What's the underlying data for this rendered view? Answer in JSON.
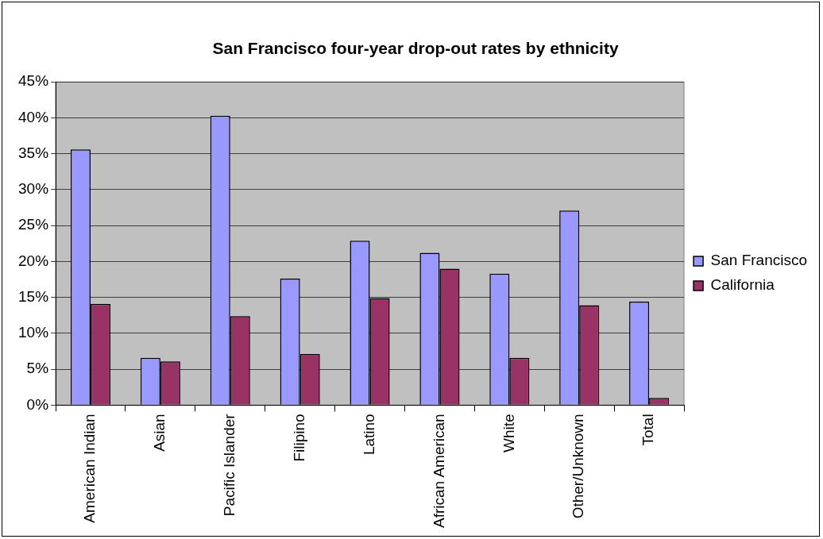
{
  "chart_data": {
    "type": "bar",
    "title": "San Francisco four-year drop-out rates by ethnicity",
    "categories": [
      "American Indian",
      "Asian",
      "Pacific Islander",
      "Filipino",
      "Latino",
      "African American",
      "White",
      "Other/Unknown",
      "Total"
    ],
    "series": [
      {
        "name": "San Francisco",
        "color": "#9999ff",
        "values": [
          35.6,
          6.6,
          40.3,
          17.6,
          22.9,
          21.2,
          18.3,
          27.1,
          14.4
        ]
      },
      {
        "name": "California",
        "color": "#993366",
        "values": [
          14.1,
          6.1,
          12.4,
          7.1,
          14.9,
          19.0,
          6.6,
          13.9,
          1.0
        ]
      }
    ],
    "ylim": [
      0,
      45
    ],
    "yticks": [
      {
        "value": 0,
        "label": "0%"
      },
      {
        "value": 5,
        "label": "5%"
      },
      {
        "value": 10,
        "label": "10%"
      },
      {
        "value": 15,
        "label": "15%"
      },
      {
        "value": 20,
        "label": "20%"
      },
      {
        "value": 25,
        "label": "25%"
      },
      {
        "value": 30,
        "label": "30%"
      },
      {
        "value": 35,
        "label": "35%"
      },
      {
        "value": 40,
        "label": "40%"
      },
      {
        "value": 45,
        "label": "45%"
      }
    ],
    "grid": "y",
    "legend": "right"
  }
}
